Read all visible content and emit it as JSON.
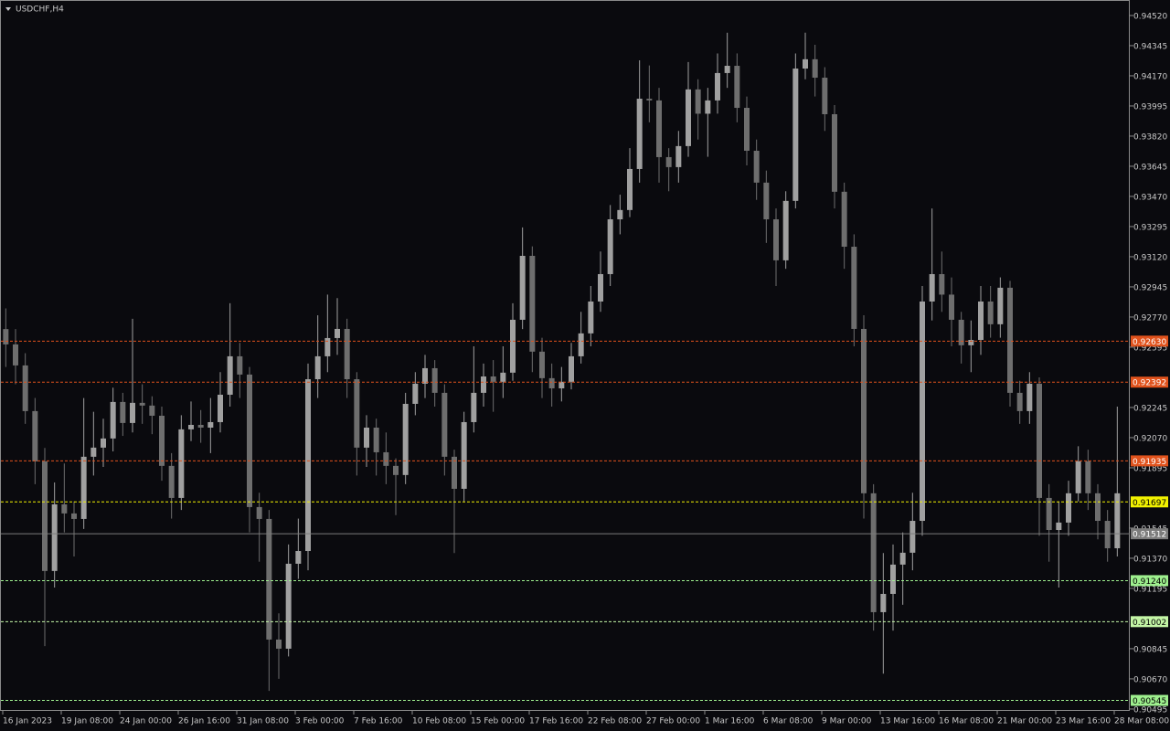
{
  "chart_data": {
    "type": "candlestick",
    "title": "USDCHF,H4",
    "categories": [
      "16 Jan 2023",
      null,
      null,
      null,
      null,
      null,
      "19 Jan 08:00",
      null,
      null,
      null,
      null,
      null,
      "24 Jan 00:00",
      null,
      null,
      null,
      null,
      null,
      "26 Jan 16:00",
      null,
      null,
      null,
      null,
      null,
      "31 Jan 08:00",
      null,
      null,
      null,
      null,
      null,
      "3 Feb 00:00",
      null,
      null,
      null,
      null,
      null,
      "7 Feb 16:00",
      null,
      null,
      null,
      null,
      null,
      "10 Feb 08:00",
      null,
      null,
      null,
      null,
      null,
      "15 Feb 00:00",
      null,
      null,
      null,
      null,
      null,
      "17 Feb 16:00",
      null,
      null,
      null,
      null,
      null,
      "22 Feb 08:00",
      null,
      null,
      null,
      null,
      null,
      "27 Feb 00:00",
      null,
      null,
      null,
      null,
      null,
      "1 Mar 16:00",
      null,
      null,
      null,
      null,
      null,
      "6 Mar 08:00",
      null,
      null,
      null,
      null,
      null,
      "9 Mar 00:00",
      null,
      null,
      null,
      null,
      null,
      "13 Mar 16:00",
      null,
      null,
      null,
      null,
      null,
      "16 Mar 08:00",
      null,
      null,
      null,
      null,
      null,
      "21 Mar 00:00",
      null,
      null,
      null,
      null,
      null,
      "23 Mar 16:00",
      null,
      null,
      null,
      null,
      null,
      "28 Mar 08:00"
    ],
    "open": [
      0.927,
      0.92611,
      0.92489,
      0.92224,
      0.91932,
      0.91296,
      0.91683,
      0.9163,
      0.91598,
      0.91959,
      0.92012,
      0.92065,
      0.92277,
      0.92155,
      0.92272,
      0.92256,
      0.92197,
      0.91906,
      0.9172,
      0.92118,
      0.92144,
      0.92128,
      0.9216,
      0.92319,
      0.92542,
      0.92436,
      0.91667,
      0.91598,
      0.90898,
      0.90845,
      0.91338,
      0.91412,
      0.92409,
      0.92542,
      0.92648,
      0.92701,
      0.92409,
      0.92012,
      0.92128,
      0.91985,
      0.91906,
      0.91853,
      0.92266,
      0.92383,
      0.92473,
      0.9233,
      0.91959,
      0.91773,
      0.9216,
      0.9233,
      0.92425,
      0.92394,
      0.92447,
      0.92754,
      0.93125,
      0.92569,
      0.92415,
      0.92356,
      0.92394,
      0.92542,
      0.92675,
      0.9286,
      0.93019,
      0.93337,
      0.93391,
      0.93629,
      0.94037,
      0.94027,
      0.93698,
      0.9364,
      0.93762,
      0.94091,
      0.9395,
      0.94027,
      0.94186,
      0.94228,
      0.93984,
      0.93735,
      0.9355,
      0.93337,
      0.93099,
      0.93444,
      0.94212,
      0.94266,
      0.94159,
      0.93947,
      0.93497,
      0.93178,
      0.92701,
      0.91747,
      0.91057,
      0.91163,
      0.91333,
      0.91402,
      0.91587,
      0.9286,
      0.93019,
      0.929,
      0.92754,
      0.92606,
      0.92637,
      0.9286,
      0.92728,
      0.9294,
      0.9233,
      0.92224,
      0.92383,
      0.9172,
      0.91534,
      0.91577,
      0.91747,
      0.91932,
      0.91747,
      0.91587,
      0.91428
    ],
    "high": [
      0.9282,
      0.927,
      0.9256,
      0.923,
      0.9201,
      0.9181,
      0.9192,
      0.917,
      0.923,
      0.9222,
      0.9218,
      0.9236,
      0.9233,
      0.9276,
      0.9238,
      0.9231,
      0.9225,
      0.9198,
      0.922,
      0.9228,
      0.9223,
      0.923,
      0.9245,
      0.9285,
      0.9262,
      0.9248,
      0.9175,
      0.9165,
      0.9105,
      0.9145,
      0.916,
      0.925,
      0.9278,
      0.929,
      0.9288,
      0.9276,
      0.9245,
      0.922,
      0.9218,
      0.921,
      0.9195,
      0.9233,
      0.9245,
      0.9255,
      0.9252,
      0.9238,
      0.92,
      0.9222,
      0.926,
      0.925,
      0.9252,
      0.926,
      0.9285,
      0.9329,
      0.9318,
      0.9265,
      0.925,
      0.9248,
      0.9262,
      0.928,
      0.9295,
      0.9315,
      0.9342,
      0.9348,
      0.9375,
      0.9426,
      0.9423,
      0.941,
      0.9375,
      0.9385,
      0.9425,
      0.9415,
      0.941,
      0.943,
      0.9442,
      0.943,
      0.9405,
      0.938,
      0.9362,
      0.934,
      0.935,
      0.943,
      0.9442,
      0.9435,
      0.9422,
      0.94,
      0.9355,
      0.9325,
      0.9278,
      0.918,
      0.914,
      0.9145,
      0.9152,
      0.9175,
      0.9295,
      0.934,
      0.9315,
      0.93,
      0.928,
      0.9275,
      0.9295,
      0.9295,
      0.93,
      0.9298,
      0.924,
      0.9245,
      0.9242,
      0.918,
      0.917,
      0.9182,
      0.9202,
      0.92,
      0.918,
      0.9165,
      0.9225
    ],
    "low": [
      0.9248,
      0.9238,
      0.9215,
      0.918,
      0.9086,
      0.912,
      0.9152,
      0.9138,
      0.9154,
      0.9185,
      0.919,
      0.9199,
      0.9208,
      0.921,
      0.9215,
      0.9209,
      0.9182,
      0.916,
      0.9165,
      0.9205,
      0.9204,
      0.9198,
      0.921,
      0.9225,
      0.923,
      0.9152,
      0.9135,
      0.906,
      0.9067,
      0.908,
      0.9125,
      0.913,
      0.923,
      0.9245,
      0.9255,
      0.923,
      0.9185,
      0.919,
      0.9185,
      0.918,
      0.9162,
      0.918,
      0.922,
      0.923,
      0.9225,
      0.9185,
      0.914,
      0.917,
      0.921,
      0.9225,
      0.9222,
      0.923,
      0.924,
      0.927,
      0.9245,
      0.923,
      0.9225,
      0.9228,
      0.9235,
      0.925,
      0.926,
      0.928,
      0.9295,
      0.9325,
      0.9335,
      0.9355,
      0.939,
      0.9355,
      0.935,
      0.9355,
      0.937,
      0.938,
      0.937,
      0.9395,
      0.941,
      0.939,
      0.9365,
      0.9345,
      0.932,
      0.9295,
      0.9305,
      0.934,
      0.9415,
      0.9405,
      0.9385,
      0.934,
      0.9305,
      0.926,
      0.916,
      0.9095,
      0.907,
      0.9095,
      0.911,
      0.913,
      0.915,
      0.9275,
      0.928,
      0.926,
      0.925,
      0.9245,
      0.9255,
      0.9265,
      0.9265,
      0.9225,
      0.9215,
      0.9215,
      0.915,
      0.9135,
      0.912,
      0.915,
      0.917,
      0.9165,
      0.9148,
      0.9135,
      0.9138
    ],
    "close": [
      0.92611,
      0.92489,
      0.92224,
      0.91932,
      0.91296,
      0.91683,
      0.9163,
      0.91598,
      0.91959,
      0.92012,
      0.92065,
      0.92277,
      0.92155,
      0.92272,
      0.92256,
      0.92197,
      0.91906,
      0.9172,
      0.92118,
      0.92144,
      0.92128,
      0.9216,
      0.92319,
      0.92542,
      0.92436,
      0.91667,
      0.91598,
      0.90898,
      0.90845,
      0.91338,
      0.91412,
      0.92409,
      0.92542,
      0.92648,
      0.92701,
      0.92409,
      0.92012,
      0.92128,
      0.91985,
      0.91906,
      0.91853,
      0.92266,
      0.92383,
      0.92473,
      0.9233,
      0.91959,
      0.91773,
      0.9216,
      0.9233,
      0.92425,
      0.92394,
      0.92447,
      0.92754,
      0.93125,
      0.92569,
      0.92415,
      0.92356,
      0.92394,
      0.92542,
      0.92675,
      0.9286,
      0.93019,
      0.93337,
      0.93391,
      0.93629,
      0.94037,
      0.94027,
      0.93698,
      0.9364,
      0.93762,
      0.94091,
      0.9395,
      0.94027,
      0.94186,
      0.94228,
      0.93984,
      0.93735,
      0.9355,
      0.93337,
      0.93099,
      0.93444,
      0.94212,
      0.94266,
      0.94159,
      0.93947,
      0.93497,
      0.93178,
      0.92701,
      0.91747,
      0.91057,
      0.91163,
      0.91333,
      0.91402,
      0.91587,
      0.9286,
      0.93019,
      0.929,
      0.92754,
      0.92606,
      0.92637,
      0.9286,
      0.92728,
      0.9294,
      0.9233,
      0.92224,
      0.92383,
      0.9172,
      0.91534,
      0.91577,
      0.91747,
      0.91932,
      0.91747,
      0.91587,
      0.91428,
      0.91747
    ],
    "up_color": "#a0a0a0",
    "down_color": "#6e6e6e",
    "ylim": [
      0.90484,
      0.94594
    ],
    "yticks": [
      {
        "value": 0.9452,
        "label": "0.94520"
      },
      0.94345,
      {
        "value": 0.9417,
        "label": "0.94170"
      },
      0.93995,
      {
        "value": 0.9382,
        "label": "0.93820"
      },
      0.93645,
      {
        "value": 0.9347,
        "label": "0.93470"
      },
      0.93295,
      {
        "value": 0.9312,
        "label": "0.93120"
      },
      0.92945,
      {
        "value": 0.9277,
        "label": "0.92770"
      },
      0.92595,
      0.92245,
      {
        "value": 0.9207,
        "label": "0.92070"
      },
      0.91895,
      0.91545,
      {
        "value": 0.9137,
        "label": "0.91370"
      },
      0.91195,
      0.90845,
      {
        "value": 0.9067,
        "label": "0.90670"
      },
      0.90495
    ],
    "levels": [
      {
        "price": 0.9263,
        "price_label": "0.92630",
        "color": "#e0521c",
        "dash": true
      },
      {
        "price": 0.92392,
        "color": "#e0521c",
        "dash": true
      },
      {
        "price": 0.91935,
        "color": "#e0521c",
        "dash": true
      },
      {
        "price": 0.91697,
        "color": "#f2f200",
        "dash": true
      },
      {
        "price": 0.91512,
        "color": "#7c7c7c",
        "dash": false
      },
      {
        "price": 0.9124,
        "price_label": "0.91240",
        "color": "#9ef08e",
        "dash": true
      },
      {
        "price": 0.91002,
        "color": "#c4f6a6",
        "dash": true
      },
      {
        "price": 0.90545,
        "color": "#9ef08e",
        "dash": true
      }
    ]
  }
}
